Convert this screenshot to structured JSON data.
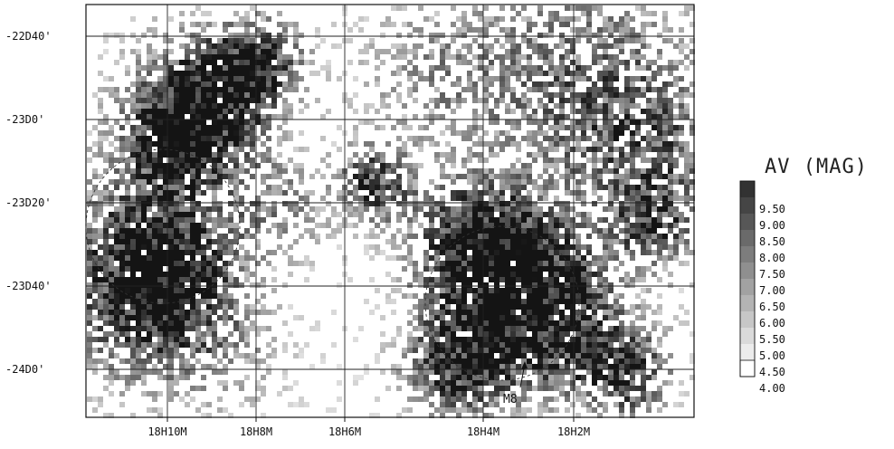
{
  "map": {
    "y_ticks": [
      "-22D40'",
      "-23D0'",
      "-23D20'",
      "-23D40'",
      "-24D0'"
    ],
    "x_ticks": [
      "18H10M",
      "18H8M",
      "18H6M",
      "18H4M",
      "18H2M"
    ],
    "annotation": "M8"
  },
  "legend": {
    "title": "AV (MAG)",
    "levels": [
      "9.50",
      "9.00",
      "8.50",
      "8.00",
      "7.50",
      "7.00",
      "6.50",
      "6.00",
      "5.50",
      "5.00",
      "4.50",
      "4.00"
    ]
  }
}
